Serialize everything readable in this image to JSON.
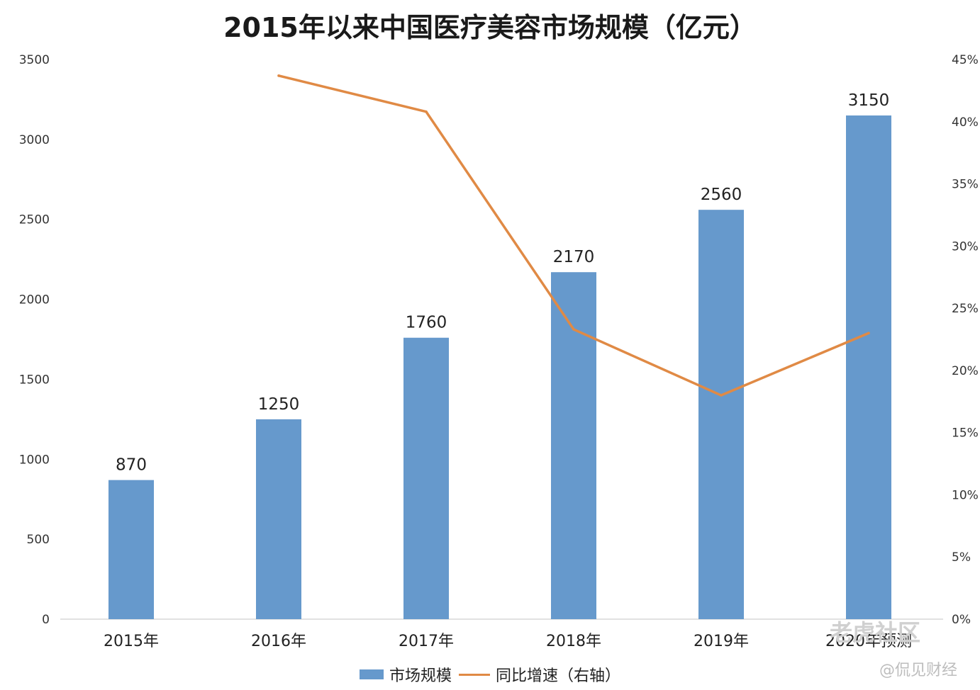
{
  "chart_data": {
    "type": "bar",
    "title": "2015年以来中国医疗美容市场规模（亿元）",
    "categories": [
      "2015年",
      "2016年",
      "2017年",
      "2018年",
      "2019年",
      "2020年预测"
    ],
    "series": [
      {
        "name": "市场规模",
        "type": "bar",
        "axis": "left",
        "color": "#6699cc",
        "values": [
          870,
          1250,
          1760,
          2170,
          2560,
          3150
        ]
      },
      {
        "name": "同比增速（右轴）",
        "type": "line",
        "axis": "right",
        "color": "#e08a45",
        "values": [
          null,
          43.7,
          40.8,
          23.3,
          18.0,
          23.0
        ]
      }
    ],
    "left_axis": {
      "min": 0,
      "max": 3500,
      "ticks": [
        "0",
        "500",
        "1000",
        "1500",
        "2000",
        "2500",
        "3000",
        "3500"
      ]
    },
    "right_axis": {
      "min": 0,
      "max": 45,
      "ticks": [
        "0%",
        "5%",
        "10%",
        "15%",
        "20%",
        "25%",
        "30%",
        "35%",
        "40%",
        "45%"
      ]
    },
    "data_labels": [
      "870",
      "1250",
      "1760",
      "2170",
      "2560",
      "3150"
    ],
    "grid": false,
    "legend_position": "bottom"
  },
  "legend": {
    "bar_label": "市场规模",
    "line_label": "同比增速（右轴）"
  },
  "watermark": {
    "line1": "老虎社区",
    "line2": "@侃见财经"
  }
}
